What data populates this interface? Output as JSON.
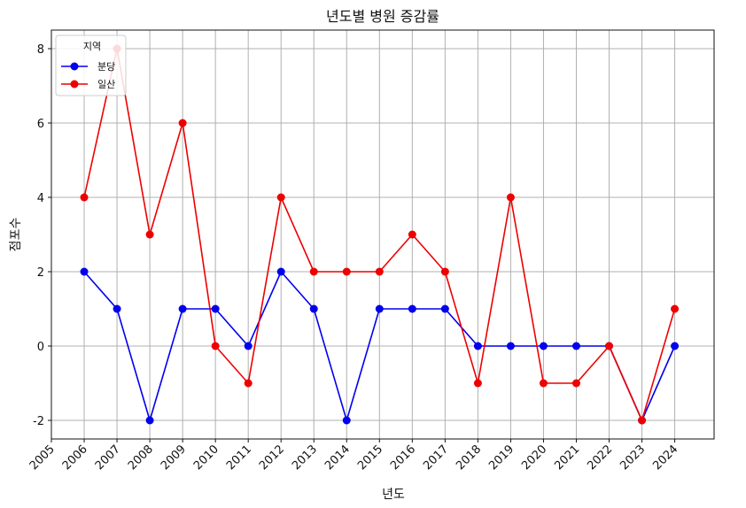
{
  "chart_data": {
    "type": "line",
    "title": "년도별 병원 증감률",
    "xlabel": "년도",
    "ylabel": "점포수",
    "x": [
      2005,
      2006,
      2007,
      2008,
      2009,
      2010,
      2011,
      2012,
      2013,
      2014,
      2015,
      2016,
      2017,
      2018,
      2019,
      2020,
      2021,
      2022,
      2023,
      2024
    ],
    "x_tick_labels": [
      "2005",
      "2006",
      "2007",
      "2008",
      "2009",
      "2010",
      "2011",
      "2012",
      "2013",
      "2014",
      "2015",
      "2016",
      "2017",
      "2018",
      "2019",
      "2020",
      "2021",
      "2022",
      "2023",
      "2024"
    ],
    "y_tick_values": [
      -2,
      0,
      2,
      4,
      6,
      8
    ],
    "y_tick_labels": [
      "-2",
      "0",
      "2",
      "4",
      "6",
      "8"
    ],
    "xlim": [
      2005,
      2025.2
    ],
    "ylim": [
      -2.5,
      8.5
    ],
    "grid": true,
    "legend": {
      "title": "지역",
      "position": "top-left"
    },
    "series": [
      {
        "name": "분당",
        "color": "#0000ee",
        "marker": "circle",
        "x": [
          2006,
          2007,
          2008,
          2009,
          2010,
          2011,
          2012,
          2013,
          2014,
          2015,
          2016,
          2017,
          2018,
          2019,
          2020,
          2021,
          2022,
          2023,
          2024
        ],
        "values": [
          2,
          1,
          -2,
          1,
          1,
          0,
          2,
          1,
          -2,
          1,
          1,
          1,
          0,
          0,
          0,
          0,
          0,
          -2,
          0
        ]
      },
      {
        "name": "일산",
        "color": "#ee0000",
        "marker": "circle",
        "x": [
          2006,
          2007,
          2008,
          2009,
          2010,
          2011,
          2012,
          2013,
          2014,
          2015,
          2016,
          2017,
          2018,
          2019,
          2020,
          2021,
          2022,
          2023,
          2024
        ],
        "values": [
          4,
          8,
          3,
          6,
          0,
          -1,
          4,
          2,
          2,
          2,
          3,
          2,
          -1,
          4,
          -1,
          -1,
          0,
          -2,
          1
        ]
      }
    ]
  }
}
